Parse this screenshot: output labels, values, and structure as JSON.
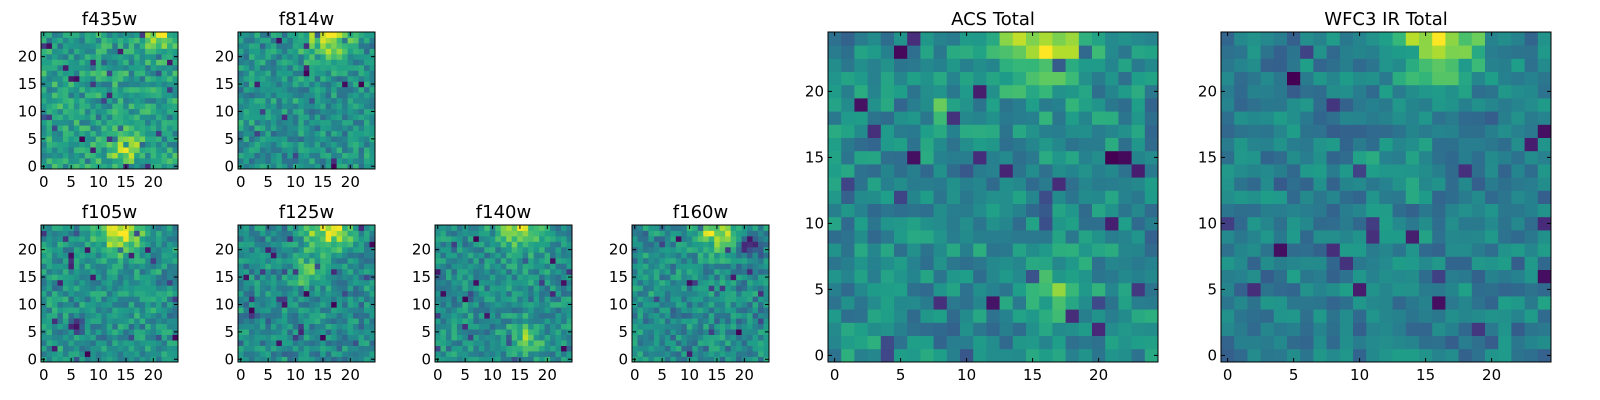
{
  "chart_data": [
    {
      "id": "f435w",
      "type": "heatmap",
      "title": "f435w",
      "grid_size": 25,
      "xlim": [
        -0.5,
        24.5
      ],
      "ylim": [
        -0.5,
        24.5
      ],
      "xticks": [
        0,
        5,
        10,
        15,
        20
      ],
      "yticks": [
        0,
        5,
        10,
        15,
        20
      ],
      "colormap": "viridis",
      "grid": false,
      "features": [
        [
          15,
          4,
          0.6,
          2
        ],
        [
          21,
          24,
          0.5,
          2
        ]
      ]
    },
    {
      "id": "f814w",
      "type": "heatmap",
      "title": "f814w",
      "grid_size": 25,
      "xlim": [
        -0.5,
        24.5
      ],
      "ylim": [
        -0.5,
        24.5
      ],
      "xticks": [
        0,
        5,
        10,
        15,
        20
      ],
      "yticks": [
        0,
        5,
        10,
        15,
        20
      ],
      "colormap": "viridis",
      "grid": false,
      "features": [
        [
          16,
          24,
          0.7,
          3
        ]
      ]
    },
    {
      "id": "f105w",
      "type": "heatmap",
      "title": "f105w",
      "grid_size": 25,
      "xlim": [
        -0.5,
        24.5
      ],
      "ylim": [
        -0.5,
        24.5
      ],
      "xticks": [
        0,
        5,
        10,
        15,
        20
      ],
      "yticks": [
        0,
        5,
        10,
        15,
        20
      ],
      "colormap": "viridis",
      "grid": false,
      "features": [
        [
          14,
          24,
          0.8,
          3
        ],
        [
          6,
          6,
          -1.0,
          0.8
        ]
      ]
    },
    {
      "id": "f125w",
      "type": "heatmap",
      "title": "f125w",
      "grid_size": 25,
      "xlim": [
        -0.5,
        24.5
      ],
      "ylim": [
        -0.5,
        24.5
      ],
      "xticks": [
        0,
        5,
        10,
        15,
        20
      ],
      "yticks": [
        0,
        5,
        10,
        15,
        20
      ],
      "colormap": "viridis",
      "grid": false,
      "features": [
        [
          16,
          24,
          0.8,
          3
        ],
        [
          12,
          16,
          0.4,
          2
        ]
      ]
    },
    {
      "id": "f140w",
      "type": "heatmap",
      "title": "f140w",
      "grid_size": 25,
      "xlim": [
        -0.5,
        24.5
      ],
      "ylim": [
        -0.5,
        24.5
      ],
      "xticks": [
        0,
        5,
        10,
        15,
        20
      ],
      "yticks": [
        0,
        5,
        10,
        15,
        20
      ],
      "colormap": "viridis",
      "grid": false,
      "features": [
        [
          15,
          24,
          0.7,
          3
        ],
        [
          16,
          4,
          0.5,
          2
        ]
      ]
    },
    {
      "id": "f160w",
      "type": "heatmap",
      "title": "f160w",
      "grid_size": 25,
      "xlim": [
        -0.5,
        24.5
      ],
      "ylim": [
        -0.5,
        24.5
      ],
      "xticks": [
        0,
        5,
        10,
        15,
        20
      ],
      "yticks": [
        0,
        5,
        10,
        15,
        20
      ],
      "colormap": "viridis",
      "grid": false,
      "features": [
        [
          15,
          24,
          0.7,
          3
        ],
        [
          21,
          21,
          -0.9,
          1.2
        ]
      ]
    },
    {
      "id": "acs-total",
      "type": "heatmap",
      "title": "ACS Total",
      "grid_size": 25,
      "xlim": [
        -0.5,
        24.5
      ],
      "ylim": [
        -0.5,
        24.5
      ],
      "xticks": [
        0,
        5,
        10,
        15,
        20
      ],
      "yticks": [
        0,
        5,
        10,
        15,
        20
      ],
      "colormap": "viridis",
      "grid": false,
      "features": [
        [
          16,
          24,
          0.9,
          2.5
        ],
        [
          17,
          5,
          0.5,
          1.5
        ],
        [
          8,
          19,
          0.4,
          0.8
        ]
      ]
    },
    {
      "id": "wfc3-ir-total",
      "type": "heatmap",
      "title": "WFC3 IR Total",
      "grid_size": 25,
      "xlim": [
        -0.5,
        24.5
      ],
      "ylim": [
        -0.5,
        24.5
      ],
      "xticks": [
        0,
        5,
        10,
        15,
        20
      ],
      "yticks": [
        0,
        5,
        10,
        15,
        20
      ],
      "colormap": "viridis",
      "grid": false,
      "features": [
        [
          16,
          24,
          1.0,
          2.5
        ],
        [
          13,
          14,
          0.3,
          1.5
        ]
      ]
    }
  ],
  "colors": {
    "viridis": [
      "#440154",
      "#482878",
      "#3e4989",
      "#31688e",
      "#26828e",
      "#1f9e89",
      "#35b779",
      "#6ece58",
      "#b5de2b",
      "#fde725"
    ],
    "axis": "#000000",
    "background": "#ffffff"
  }
}
